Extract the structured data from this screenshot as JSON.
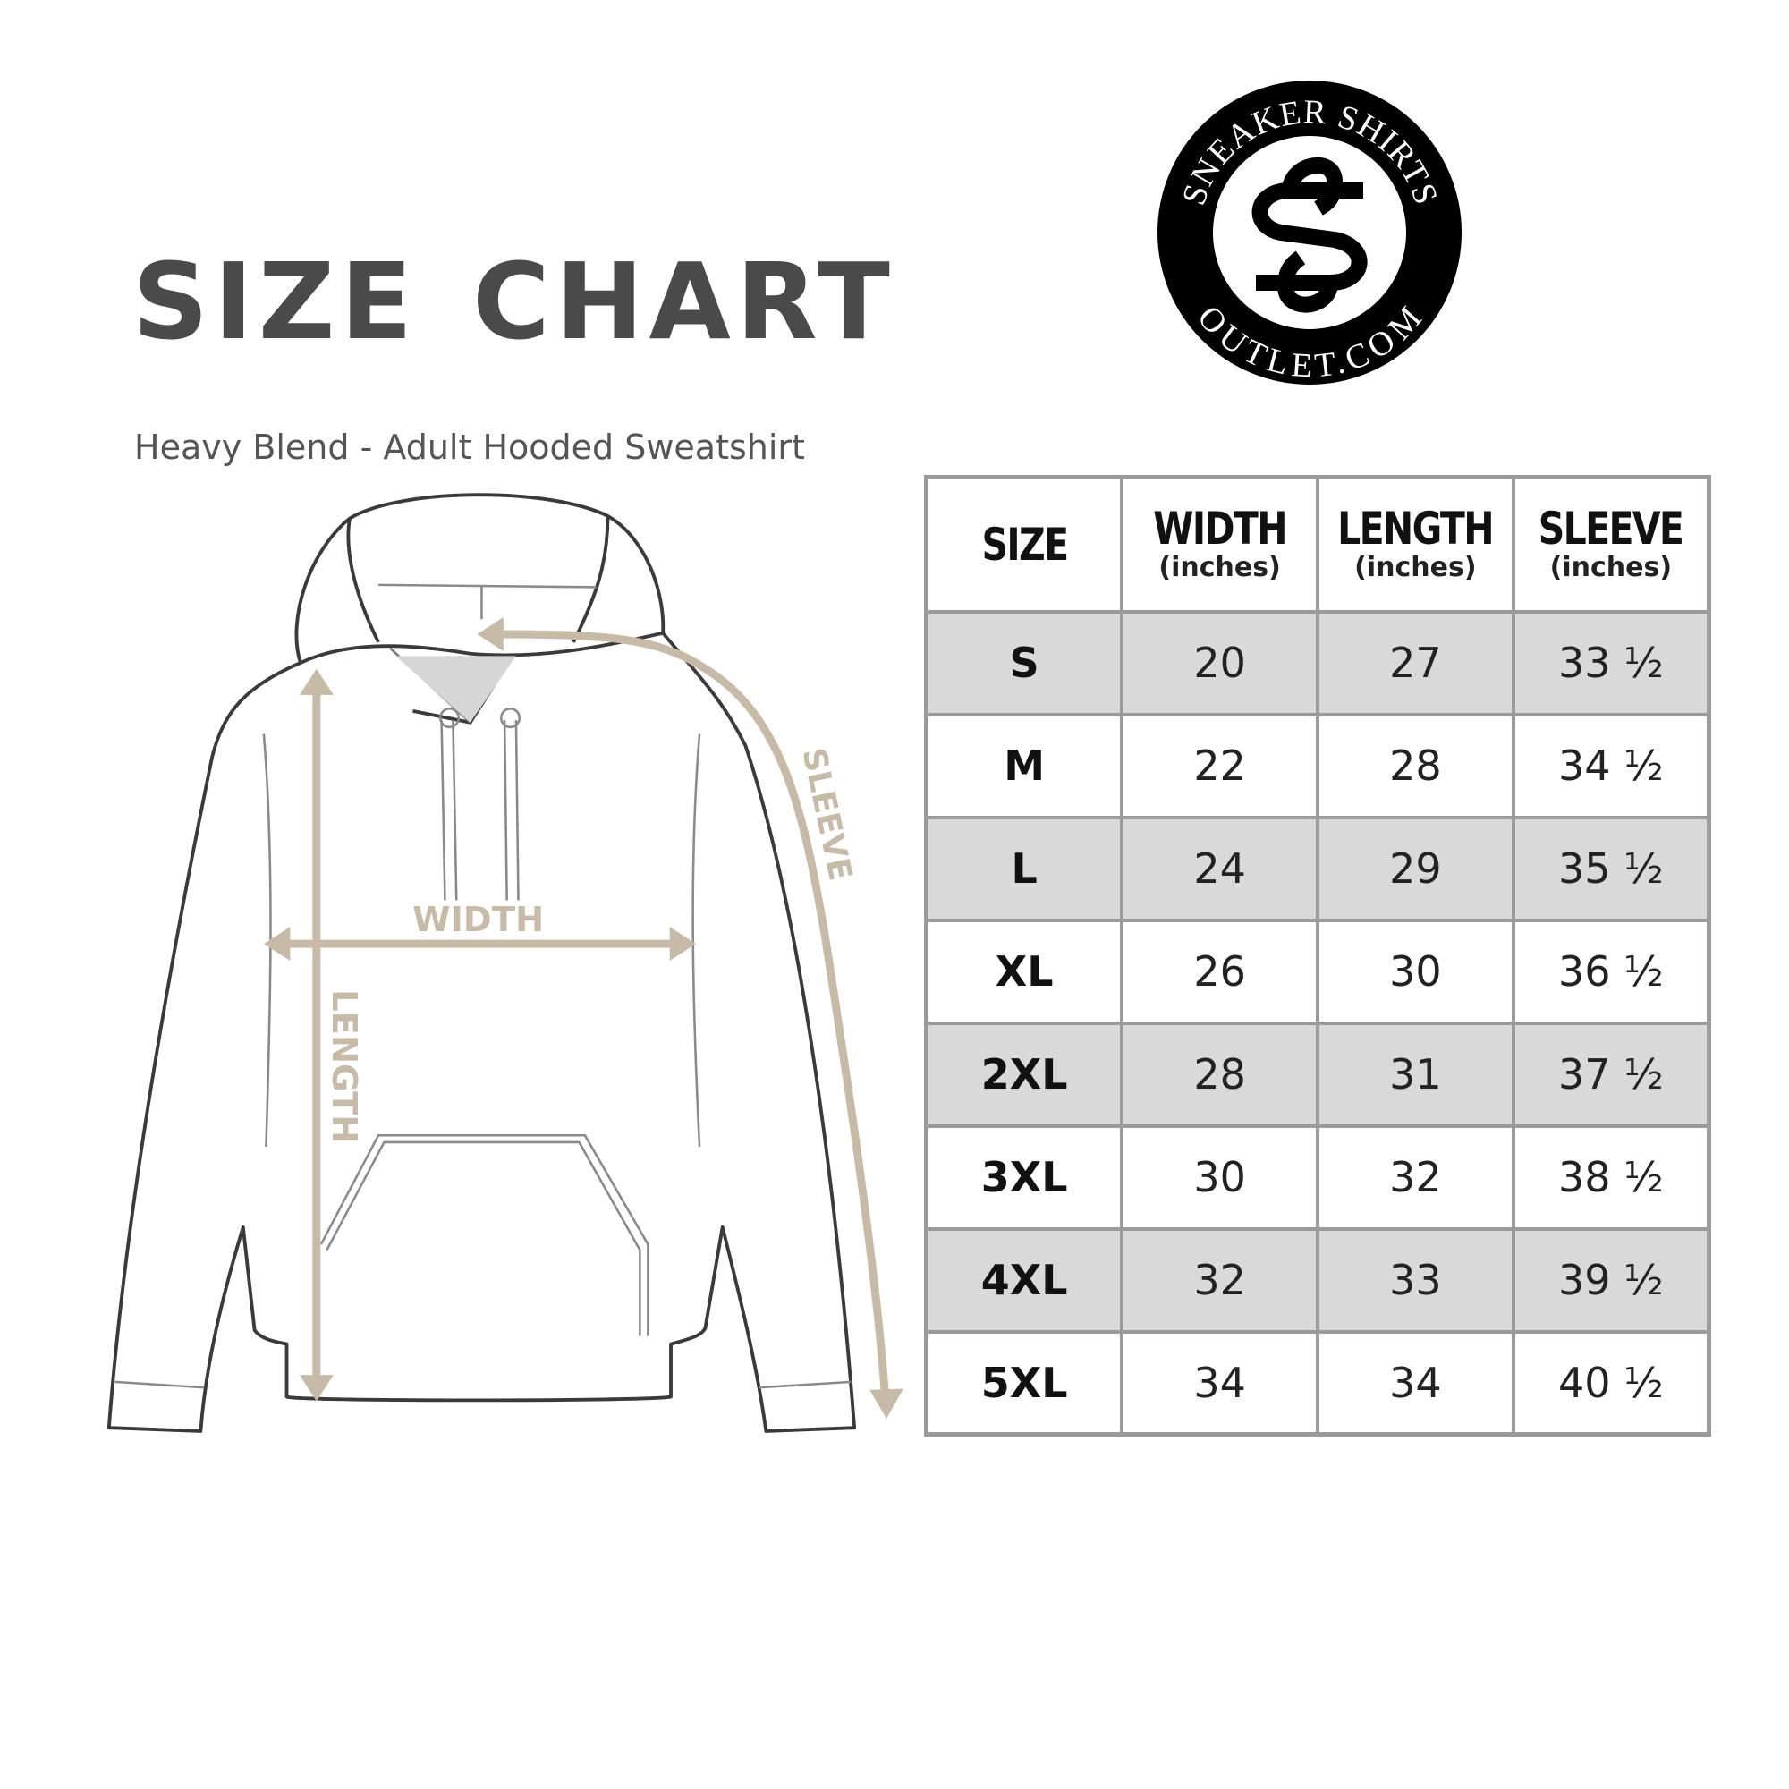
{
  "header": {
    "title": "SIZE CHART",
    "subtitle": "Heavy Blend - Adult Hooded Sweatshirt"
  },
  "logo": {
    "top_text": "SNEAKER SHIRTS",
    "bottom_text": "OUTLET.COM",
    "monogram": "SS"
  },
  "diagram": {
    "labels": {
      "width": "WIDTH",
      "length": "LENGTH",
      "sleeve": "SLEEVE"
    },
    "arrow_color": "#c7bba7",
    "outline_color": "#3a3a3a"
  },
  "table": {
    "columns": [
      {
        "label": "SIZE",
        "unit": ""
      },
      {
        "label": "WIDTH",
        "unit": "(inches)"
      },
      {
        "label": "LENGTH",
        "unit": "(inches)"
      },
      {
        "label": "SLEEVE",
        "unit": "(inches)"
      }
    ],
    "rows": [
      [
        "S",
        "20",
        "27",
        "33 ½"
      ],
      [
        "M",
        "22",
        "28",
        "34 ½"
      ],
      [
        "L",
        "24",
        "29",
        "35 ½"
      ],
      [
        "XL",
        "26",
        "30",
        "36 ½"
      ],
      [
        "2XL",
        "28",
        "31",
        "37 ½"
      ],
      [
        "3XL",
        "30",
        "32",
        "38 ½"
      ],
      [
        "4XL",
        "32",
        "33",
        "39 ½"
      ],
      [
        "5XL",
        "34",
        "34",
        "40 ½"
      ]
    ],
    "stripe_color": "#d9d9d9",
    "border_color": "#9a9a9a"
  }
}
